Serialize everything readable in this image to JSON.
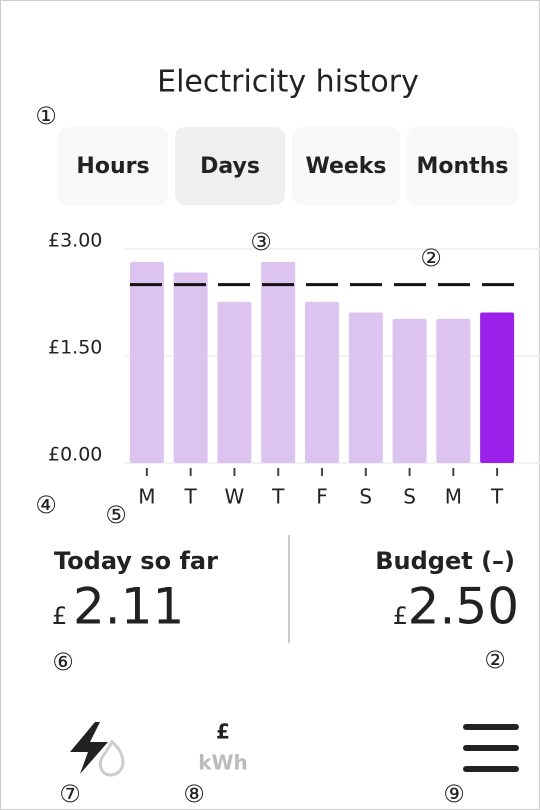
{
  "header": {
    "title": "Electricity history"
  },
  "tabs": {
    "items": [
      "Hours",
      "Days",
      "Weeks",
      "Months"
    ],
    "selected": "Days"
  },
  "chart_data": {
    "type": "bar",
    "categories": [
      "M",
      "T",
      "W",
      "T",
      "F",
      "S",
      "S",
      "M",
      "T"
    ],
    "values": [
      2.82,
      2.67,
      2.26,
      2.82,
      2.26,
      2.11,
      2.02,
      2.02,
      2.11
    ],
    "colors": [
      "#dcc3f0",
      "#dcc3f0",
      "#dcc3f0",
      "#dcc3f0",
      "#dcc3f0",
      "#dcc3f0",
      "#dcc3f0",
      "#dcc3f0",
      "#9a20ea"
    ],
    "budget": 2.5,
    "ylim": [
      0,
      3.0
    ],
    "yticks": [
      {
        "value": 0,
        "label": "£0.00"
      },
      {
        "value": 1.5,
        "label": "£1.50"
      },
      {
        "value": 3.0,
        "label": "£3.00"
      }
    ],
    "grid": true
  },
  "summary": {
    "today": {
      "label": "Today so far",
      "currency": "£",
      "amount": "2.11"
    },
    "budget": {
      "label": "Budget (–)",
      "currency": "£",
      "amount": "2.50"
    }
  },
  "nav": {
    "unit_currency": "£",
    "unit_energy": "kWh"
  },
  "annotations": [
    "①",
    "②",
    "③",
    "④",
    "⑤",
    "⑥",
    "②",
    "⑦",
    "⑧",
    "⑨"
  ]
}
